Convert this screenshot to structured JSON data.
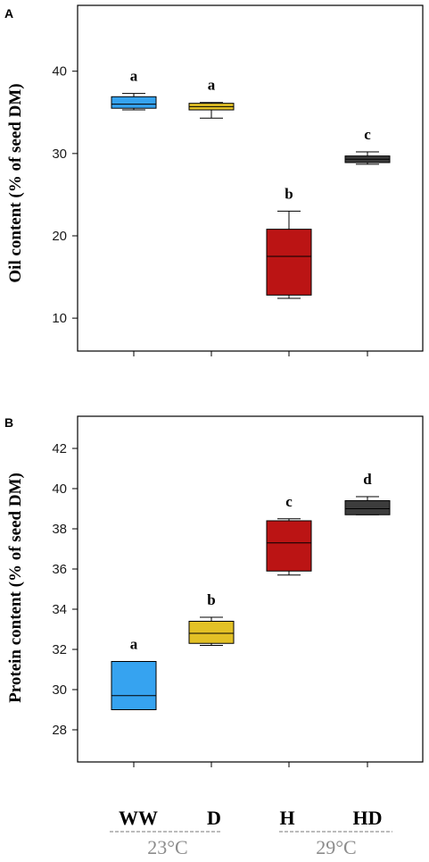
{
  "chart_data": [
    {
      "type": "box",
      "panel_label": "A",
      "ylabel": "Oil content (% of seed DM)",
      "ylim": [
        6,
        48
      ],
      "yticks": [
        10,
        20,
        30,
        40
      ],
      "categories": [
        "WW",
        "D",
        "H",
        "HD"
      ],
      "colors": [
        "#36a3f0",
        "#e3c126",
        "#bb1414",
        "#3c3c3c"
      ],
      "boxes": [
        {
          "category": "WW",
          "min": 35.3,
          "q1": 35.5,
          "median": 36.0,
          "q3": 36.9,
          "max": 37.3,
          "sig": "a"
        },
        {
          "category": "D",
          "min": 34.3,
          "q1": 35.3,
          "median": 35.7,
          "q3": 36.1,
          "max": 36.2,
          "sig": "a"
        },
        {
          "category": "H",
          "min": 12.4,
          "q1": 12.8,
          "median": 17.5,
          "q3": 20.8,
          "max": 23.0,
          "sig": "b"
        },
        {
          "category": "HD",
          "min": 28.7,
          "q1": 28.9,
          "median": 29.3,
          "q3": 29.7,
          "max": 30.2,
          "sig": "c"
        }
      ]
    },
    {
      "type": "box",
      "panel_label": "B",
      "ylabel": "Protein content (% of seed DM)",
      "ylim": [
        26.4,
        43.6
      ],
      "yticks": [
        28,
        30,
        32,
        34,
        36,
        38,
        40,
        42
      ],
      "categories": [
        "WW",
        "D",
        "H",
        "HD"
      ],
      "colors": [
        "#36a3f0",
        "#e3c126",
        "#bb1414",
        "#3c3c3c"
      ],
      "boxes": [
        {
          "category": "WW",
          "min": 29.0,
          "q1": 29.0,
          "median": 29.7,
          "q3": 31.4,
          "max": 31.4,
          "sig": "a"
        },
        {
          "category": "D",
          "min": 32.2,
          "q1": 32.3,
          "median": 32.8,
          "q3": 33.4,
          "max": 33.6,
          "sig": "b"
        },
        {
          "category": "H",
          "min": 35.7,
          "q1": 35.9,
          "median": 37.3,
          "q3": 38.4,
          "max": 38.5,
          "sig": "c"
        },
        {
          "category": "HD",
          "min": 38.7,
          "q1": 38.7,
          "median": 39.0,
          "q3": 39.4,
          "max": 39.6,
          "sig": "d"
        }
      ]
    }
  ],
  "temperature_groups": [
    {
      "label": "23°C",
      "categories": [
        "WW",
        "D"
      ]
    },
    {
      "label": "29°C",
      "categories": [
        "H",
        "HD"
      ]
    }
  ]
}
